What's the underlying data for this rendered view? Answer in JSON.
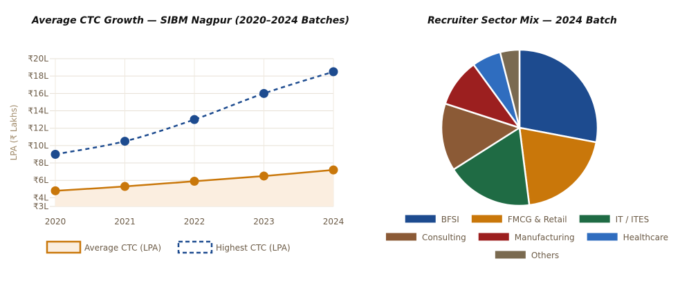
{
  "titles": {
    "line": "Average CTC Growth — SIBM Nagpur (2020–2024 Batches)",
    "pie": "Recruiter Sector Mix — 2024 Batch"
  },
  "chart_data": [
    {
      "type": "line",
      "title": "Average CTC Growth — SIBM Nagpur (2020–2024 Batches)",
      "xlabel": "",
      "ylabel": "LPA (₹ Lakhs)",
      "categories": [
        "2020",
        "2021",
        "2022",
        "2023",
        "2024"
      ],
      "ylim": [
        3,
        20
      ],
      "yticks": [
        3,
        4,
        6,
        8,
        10,
        12,
        14,
        16,
        18,
        20
      ],
      "ytick_labels": [
        "₹3L",
        "₹4L",
        "₹6L",
        "₹8L",
        "₹10L",
        "₹12L",
        "₹14L",
        "₹16L",
        "₹18L",
        "₹20L"
      ],
      "grid": true,
      "legend": "bottom",
      "series": [
        {
          "name": "Average CTC (LPA)",
          "values": [
            4.8,
            5.3,
            5.9,
            6.5,
            7.2
          ],
          "color": "#c9770a",
          "style": "solid-filled"
        },
        {
          "name": "Highest CTC (LPA)",
          "values": [
            9.0,
            10.5,
            13.0,
            16.0,
            18.5
          ],
          "color": "#1d4b8f",
          "style": "dashed"
        }
      ]
    },
    {
      "type": "pie",
      "title": "Recruiter Sector Mix — 2024 Batch",
      "legend": "bottom",
      "labels": [
        "BFSI",
        "FMCG & Retail",
        "IT / ITES",
        "Consulting",
        "Manufacturing",
        "Healthcare",
        "Others"
      ],
      "values": [
        28,
        20,
        18,
        14,
        10,
        6,
        4
      ],
      "colors": [
        "#1d4b8f",
        "#c9770a",
        "#1f6b44",
        "#8b5a36",
        "#9c1f1f",
        "#2f6dbf",
        "#7a6a50"
      ]
    }
  ]
}
